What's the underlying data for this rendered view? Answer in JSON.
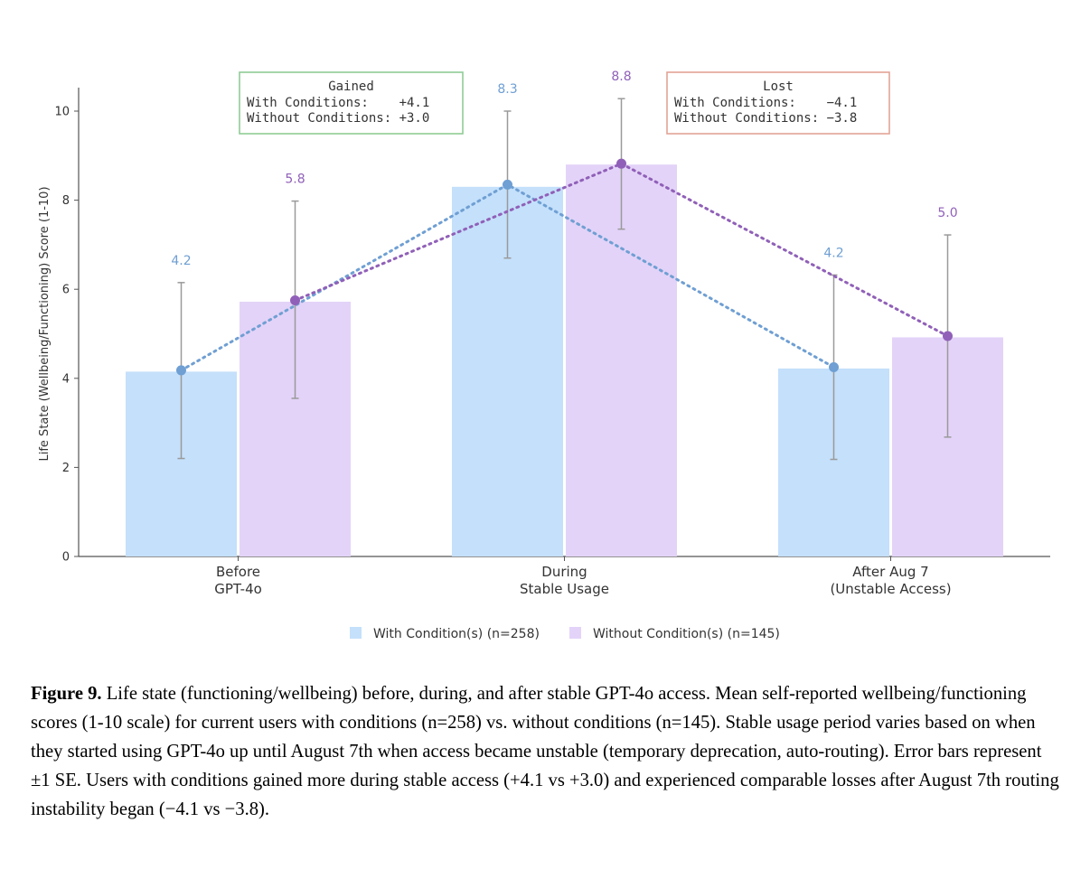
{
  "chart_data": {
    "type": "bar",
    "ylabel": "Life State (Wellbeing/Functioning) Score (1-10)",
    "ylim": [
      0,
      10.5
    ],
    "yticks": [
      0,
      2,
      4,
      6,
      8,
      10
    ],
    "grid": false,
    "legend_position": "bottom-center",
    "categories": [
      [
        "Before",
        "GPT-4o"
      ],
      [
        "During",
        "Stable Usage"
      ],
      [
        "After Aug 7",
        "(Unstable Access)"
      ]
    ],
    "series": [
      {
        "name": "With Condition(s) (n=258)",
        "values": [
          4.15,
          8.3,
          4.22
        ],
        "point_values": [
          4.18,
          8.35,
          4.25
        ],
        "labels": [
          "4.2",
          "8.3",
          "4.2"
        ],
        "error_low": [
          2.2,
          6.7,
          2.18
        ],
        "error_high": [
          6.15,
          10.0,
          6.32
        ],
        "bar_color": "#c4e0fb",
        "accent_color": "#6f9fd3"
      },
      {
        "name": "Without Condition(s) (n=145)",
        "values": [
          5.72,
          8.8,
          4.92
        ],
        "point_values": [
          5.75,
          8.82,
          4.95
        ],
        "labels": [
          "5.8",
          "8.8",
          "5.0"
        ],
        "error_low": [
          3.55,
          7.35,
          2.68
        ],
        "error_high": [
          7.98,
          10.28,
          7.22
        ],
        "bar_color": "#e3d3f8",
        "accent_color": "#9060b8"
      }
    ],
    "annotations": [
      {
        "title": "Gained",
        "lines": [
          "With Conditions:    +4.1",
          "Without Conditions: +3.0"
        ],
        "border_color": "#8fcc95"
      },
      {
        "title": "Lost",
        "lines": [
          "With Conditions:    −4.1",
          "Without Conditions: −3.8"
        ],
        "border_color": "#e3a396"
      }
    ]
  },
  "caption": {
    "label": "Figure 9.",
    "text": " Life state (functioning/wellbeing) before, during, and after stable GPT-4o access. Mean self-reported wellbeing/functioning scores (1-10 scale) for current users with conditions (n=258) vs. without conditions (n=145). Stable usage period varies based on when they started using GPT-4o up until August 7th when access became unstable (temporary deprecation, auto-routing). Error bars represent ±1 SE. Users with conditions gained more during stable access (+4.1 vs +3.0) and experienced comparable losses after August 7th routing instability began (−4.1 vs −3.8)."
  }
}
